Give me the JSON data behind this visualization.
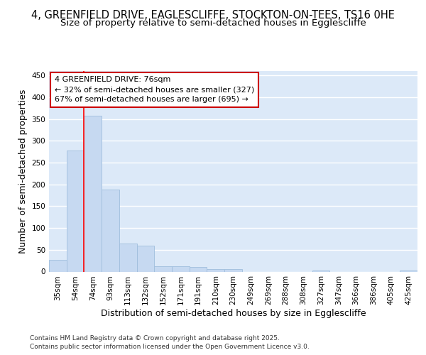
{
  "title_line1": "4, GREENFIELD DRIVE, EAGLESCLIFFE, STOCKTON-ON-TEES, TS16 0HE",
  "title_line2": "Size of property relative to semi-detached houses in Egglescliffe",
  "xlabel": "Distribution of semi-detached houses by size in Egglescliffe",
  "ylabel": "Number of semi-detached properties",
  "categories": [
    "35sqm",
    "54sqm",
    "74sqm",
    "93sqm",
    "113sqm",
    "132sqm",
    "152sqm",
    "171sqm",
    "191sqm",
    "210sqm",
    "230sqm",
    "249sqm",
    "269sqm",
    "288sqm",
    "308sqm",
    "327sqm",
    "347sqm",
    "366sqm",
    "386sqm",
    "405sqm",
    "425sqm"
  ],
  "values": [
    27,
    277,
    357,
    188,
    64,
    60,
    13,
    13,
    10,
    5,
    5,
    0,
    0,
    0,
    0,
    3,
    0,
    0,
    0,
    0,
    3
  ],
  "bar_color": "#c6d9f1",
  "bar_edge_color": "#a0bedd",
  "background_color": "#dce9f8",
  "grid_color": "#ffffff",
  "property_line_x": 1.5,
  "annotation_text": "4 GREENFIELD DRIVE: 76sqm\n← 32% of semi-detached houses are smaller (327)\n67% of semi-detached houses are larger (695) →",
  "annotation_box_facecolor": "#ffffff",
  "annotation_box_edgecolor": "#cc0000",
  "ylim": [
    0,
    460
  ],
  "yticks": [
    0,
    50,
    100,
    150,
    200,
    250,
    300,
    350,
    400,
    450
  ],
  "footer_line1": "Contains HM Land Registry data © Crown copyright and database right 2025.",
  "footer_line2": "Contains public sector information licensed under the Open Government Licence v3.0.",
  "title_fontsize": 10.5,
  "subtitle_fontsize": 9.5,
  "axis_label_fontsize": 9,
  "tick_fontsize": 7.5,
  "annot_fontsize": 8,
  "footer_fontsize": 6.5
}
